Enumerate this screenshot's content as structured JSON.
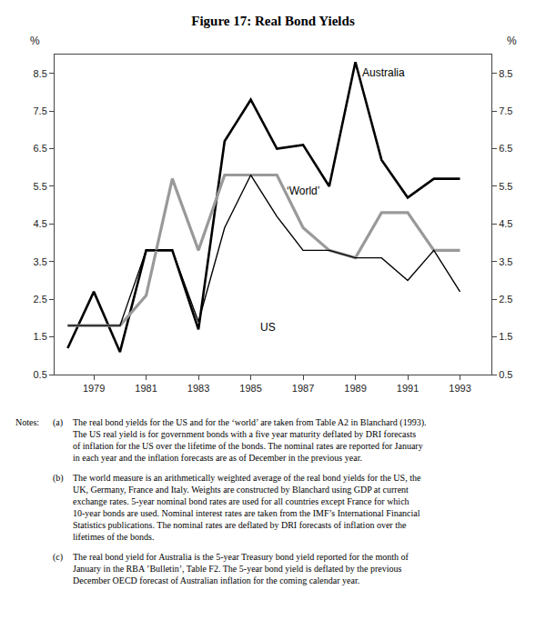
{
  "chart_data": {
    "type": "line",
    "title": "Figure 17: Real Bond Yields",
    "x": [
      1978,
      1979,
      1980,
      1981,
      1982,
      1983,
      1984,
      1985,
      1986,
      1987,
      1988,
      1989,
      1990,
      1991,
      1992,
      1993
    ],
    "series": [
      {
        "name": "Australia",
        "color": "#000000",
        "values": [
          1.2,
          2.7,
          1.1,
          3.8,
          3.8,
          1.7,
          6.7,
          7.8,
          6.5,
          6.6,
          5.5,
          8.8,
          6.2,
          5.2,
          5.7,
          5.7
        ]
      },
      {
        "name": "‘World’",
        "color": "#999999",
        "values": [
          1.8,
          1.8,
          1.8,
          2.6,
          5.7,
          3.8,
          5.8,
          5.8,
          5.8,
          4.4,
          3.8,
          3.6,
          4.8,
          4.8,
          3.8,
          3.8
        ]
      },
      {
        "name": "US",
        "color": "#000000",
        "values": [
          1.8,
          1.8,
          1.8,
          3.8,
          3.8,
          1.9,
          4.4,
          5.8,
          4.7,
          3.8,
          3.8,
          3.6,
          3.6,
          3.0,
          3.8,
          2.7
        ]
      }
    ],
    "xlim": [
      1977.5,
      1994.2
    ],
    "xticks": [
      1979,
      1981,
      1983,
      1985,
      1987,
      1989,
      1991,
      1993
    ],
    "ylim": [
      0.5,
      9.0
    ],
    "yticks": [
      0.5,
      1.5,
      2.5,
      3.5,
      4.5,
      5.5,
      6.5,
      7.5,
      8.5
    ],
    "y2lim": [
      0.5,
      9.0
    ],
    "y2ticks": [
      0.5,
      1.5,
      2.5,
      3.5,
      4.5,
      5.5,
      6.5,
      7.5,
      8.5
    ],
    "ylabel": "%",
    "y2label": "%",
    "grid": false,
    "annotations": [
      {
        "text": "Australia",
        "x": 1989.2,
        "y": 8.3
      },
      {
        "text": "‘World’",
        "x": 1986.3,
        "y": 5.15
      },
      {
        "text": "US",
        "x": 1985.3,
        "y": 1.55
      }
    ],
    "notes_heading": "Notes:",
    "notes": [
      {
        "label": "(a)",
        "lines": [
          "The real bond yields for the US and for the ‘world’ are taken from Table A2 in Blanchard (1993).",
          "The US real yield is for government bonds with a five year maturity deflated by DRI forecasts",
          "of inflation for the US over the lifetime of the bonds. The nominal rates are reported for January",
          "in each year and the inflation forecasts are as of December in the previous year."
        ]
      },
      {
        "label": "(b)",
        "lines": [
          "The world measure is an arithmetically weighted average of the real bond yields for the US, the",
          "UK, Germany, France and Italy. Weights are constructed by Blanchard using GDP at current",
          "exchange rates. 5-year nominal bond rates are used for all countries except France for which",
          "10-year bonds are used. Nominal interest rates are taken from the IMF’s International Financial",
          "Statistics publications. The nominal rates are deflated by DRI forecasts of inflation over the",
          "lifetimes of the bonds."
        ]
      },
      {
        "label": "(c)",
        "lines": [
          "The real bond yield for Australia is the 5-year Treasury bond yield reported for the month of",
          "January in the RBA ’Bulletin’, Table F2. The 5-year bond yield is deflated by the previous",
          "December OECD forecast of Australian inflation for the coming calendar year."
        ]
      }
    ]
  }
}
